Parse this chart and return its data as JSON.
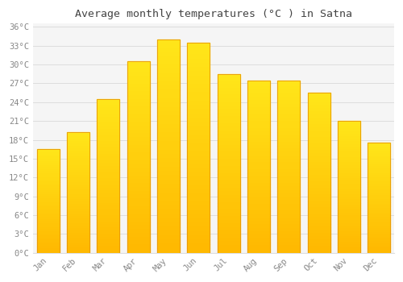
{
  "months": [
    "Jan",
    "Feb",
    "Mar",
    "Apr",
    "May",
    "Jun",
    "Jul",
    "Aug",
    "Sep",
    "Oct",
    "Nov",
    "Dec"
  ],
  "temperatures": [
    16.5,
    19.2,
    24.5,
    30.5,
    34.0,
    33.5,
    28.5,
    27.5,
    27.5,
    25.5,
    21.0,
    17.5
  ],
  "bar_color_top": "#FFD55A",
  "bar_color_bottom": "#F5A800",
  "bar_edge_color": "#E8960A",
  "background_color": "#FFFFFF",
  "plot_bg_color": "#F5F5F5",
  "grid_color": "#DDDDDD",
  "title": "Average monthly temperatures (°C ) in Satna",
  "title_fontsize": 9.5,
  "tick_label_color": "#888888",
  "title_color": "#444444",
  "ytick_step": 3,
  "ymin": 0,
  "ymax": 36,
  "font_family": "monospace",
  "bar_width": 0.75
}
